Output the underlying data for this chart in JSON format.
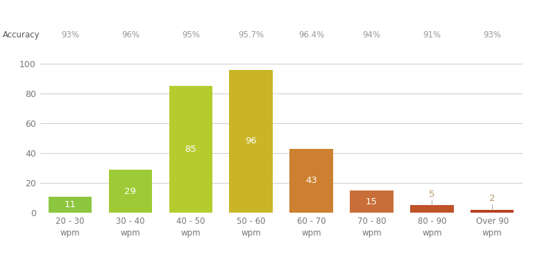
{
  "categories": [
    "20 - 30\nwpm",
    "30 - 40\nwpm",
    "40 - 50\nwpm",
    "50 - 60\nwpm",
    "60 - 70\nwpm",
    "70 - 80\nwpm",
    "80 - 90\nwpm",
    "Over 90\nwpm"
  ],
  "values": [
    11,
    29,
    85,
    96,
    43,
    15,
    5,
    2
  ],
  "accuracy": [
    "93%",
    "96%",
    "95%",
    "95.7%",
    "96.4%",
    "94%",
    "91%",
    "93%"
  ],
  "bar_colors": [
    "#8dc63f",
    "#9ecb35",
    "#b5cc2e",
    "#c9b526",
    "#cc8030",
    "#c86e38",
    "#bf5228",
    "#b84020"
  ],
  "bar_label_color_inside": "#b8956a",
  "bar_label_color_white": "#ffffff",
  "accuracy_label_color": "#999999",
  "accuracy_header_color": "#555555",
  "background_color": "#ffffff",
  "grid_color": "#cccccc",
  "ylim": [
    0,
    100
  ],
  "yticks": [
    0,
    20,
    40,
    60,
    80,
    100
  ],
  "threshold_inside": 8
}
